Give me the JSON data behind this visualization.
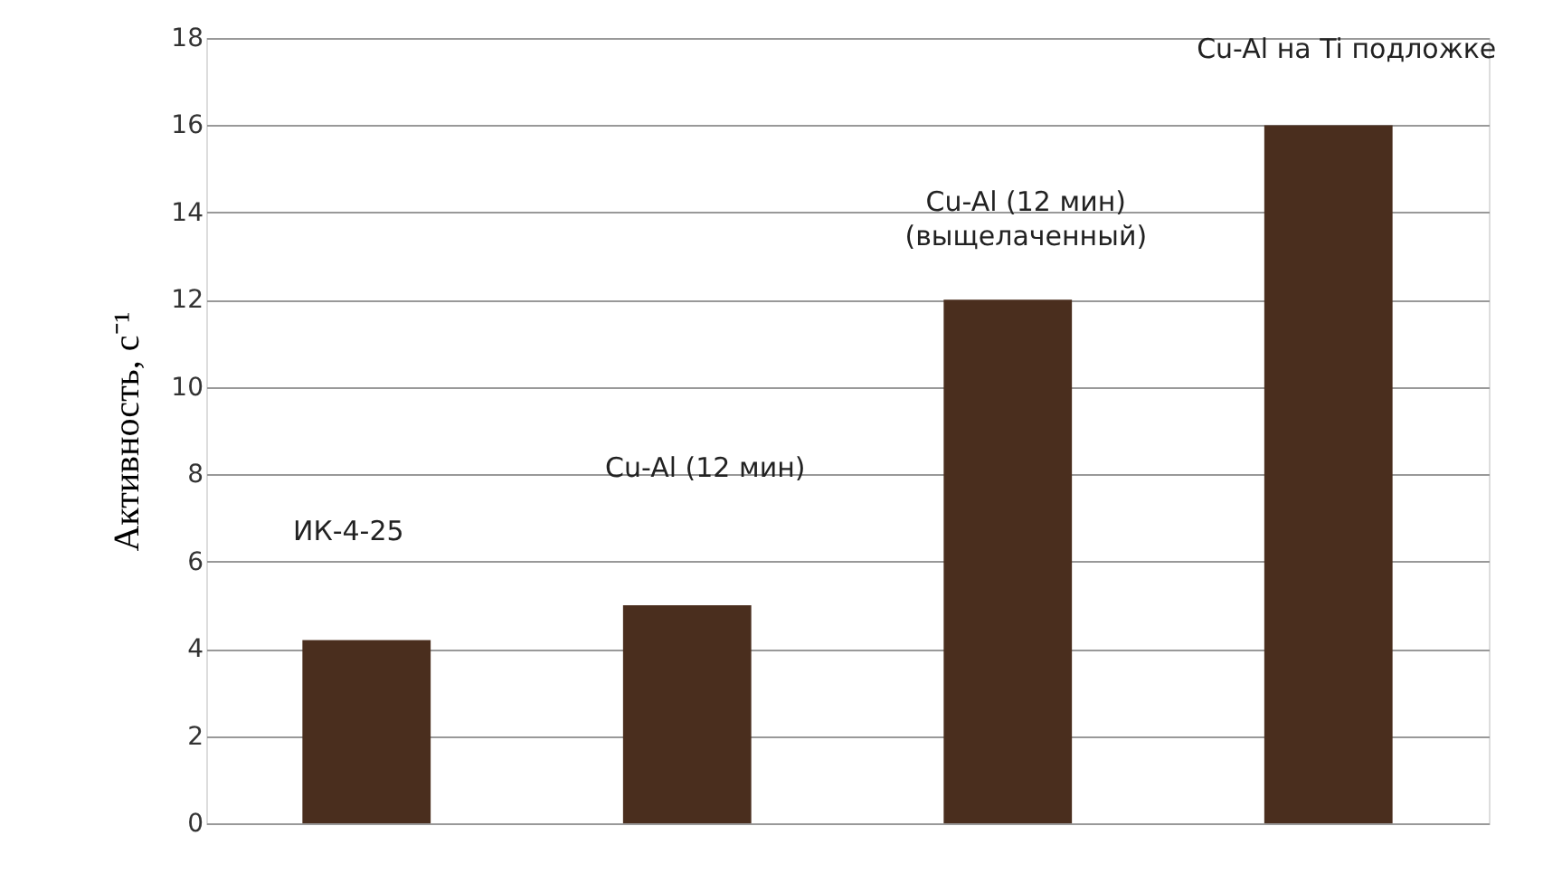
{
  "chart_data": {
    "type": "bar",
    "ylabel": "Активность, с⁻¹",
    "categories": [
      null,
      null,
      null,
      null
    ],
    "values": [
      4.2,
      5,
      12,
      16
    ],
    "color": "#4a2e1e",
    "ylim": [
      0,
      18
    ],
    "yticks": [
      0,
      2,
      4,
      6,
      8,
      10,
      12,
      14,
      16,
      18
    ],
    "grid": "y",
    "annotations": [
      "ИК-4-25",
      "Cu-Al (12 мин)",
      "Cu-Al (12 мин)\n(выщелаченный)",
      "Cu-Al  на Ti подложке"
    ]
  }
}
